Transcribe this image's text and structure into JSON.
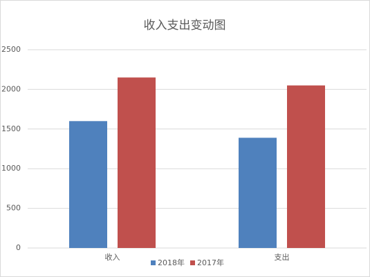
{
  "chart_data": {
    "type": "bar",
    "title": "收入支出变动图",
    "categories": [
      "收入",
      "支出"
    ],
    "series": [
      {
        "name": "2018年",
        "color": "#4f81bd",
        "values": [
          1600,
          1390
        ]
      },
      {
        "name": "2017年",
        "color": "#c0504d",
        "values": [
          2150,
          2050
        ]
      }
    ],
    "ylim": [
      0,
      2500
    ],
    "yticks": [
      0,
      500,
      1000,
      1500,
      2000,
      2500
    ],
    "grid": true,
    "legend": "bottom"
  }
}
